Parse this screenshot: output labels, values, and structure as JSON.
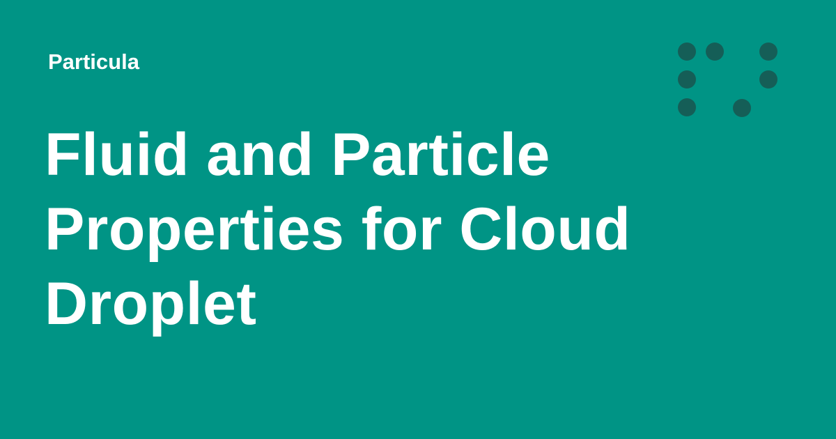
{
  "site": {
    "name": "Particula"
  },
  "page": {
    "title": "Fluid and Particle Properties for Cloud Droplet"
  },
  "logo": {
    "icon": "dot-grid-logo-icon"
  },
  "colors": {
    "background": "#009485",
    "text": "#ffffff",
    "logo_dots": "#155e57"
  }
}
